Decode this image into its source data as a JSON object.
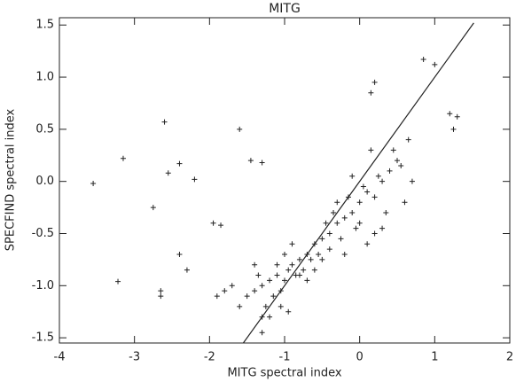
{
  "chart_data": {
    "type": "scatter",
    "title": "MITG",
    "x_label": "MITG spectral index",
    "y_label": "SPECFIND spectral index",
    "color": "#222222",
    "xlim": [
      -4,
      2
    ],
    "ylim": [
      -1.55,
      1.57
    ],
    "xticks": [
      -4,
      -3,
      -2,
      -1,
      0,
      1,
      2
    ],
    "yticks": [
      -1.5,
      {
        "value": -1.0,
        "label": "-1.0"
      },
      -0.5,
      {
        "value": 0.0,
        "label": "0.0"
      },
      0.5,
      {
        "value": 1.0,
        "label": "1.0"
      },
      1.5
    ],
    "x": [
      -1.2,
      -1.1,
      -1.0,
      -0.9,
      -0.8,
      -1.3,
      -1.4,
      -1.5,
      -0.7,
      -0.6,
      -0.5,
      -0.4,
      -0.3,
      -0.2,
      -0.1,
      0.0,
      0.1,
      0.2,
      0.3,
      0.4,
      0.5,
      -1.15,
      -1.05,
      -0.95,
      -0.85,
      -0.75,
      -1.25,
      -1.35,
      -0.65,
      -0.55,
      -0.45,
      -0.35,
      -0.25,
      -0.15,
      -0.05,
      0.05,
      0.15,
      0.25,
      0.35,
      0.45,
      0.55,
      0.65,
      -1.6,
      -1.7,
      -1.8,
      -1.9,
      -1.0,
      -0.9,
      -0.8,
      -1.1,
      -0.7,
      -0.6,
      -0.5,
      -0.4,
      -0.3,
      -0.2,
      -0.1,
      0.0,
      0.1,
      0.2,
      0.3,
      0.6,
      0.7,
      -1.2,
      -1.3,
      -1.4,
      -0.95,
      -1.05,
      -3.55,
      -3.15,
      -3.22,
      -2.6,
      -2.55,
      -2.4,
      -2.2,
      -2.75,
      -2.65,
      -2.65,
      -2.4,
      -2.3,
      -1.95,
      -1.85,
      -1.6,
      -1.45,
      -1.3,
      0.85,
      1.0,
      1.3,
      1.25,
      1.2,
      0.2,
      0.15,
      -1.3
    ],
    "y": [
      -0.95,
      -0.9,
      -0.95,
      -0.8,
      -0.75,
      -1.0,
      -1.05,
      -1.1,
      -0.7,
      -0.6,
      -0.55,
      -0.5,
      -0.4,
      -0.35,
      -0.3,
      -0.2,
      -0.1,
      -0.15,
      0.0,
      0.1,
      0.2,
      -1.1,
      -1.05,
      -0.85,
      -0.9,
      -0.85,
      -1.2,
      -0.9,
      -0.75,
      -0.7,
      -0.4,
      -0.3,
      -0.55,
      -0.15,
      -0.45,
      -0.05,
      0.3,
      0.05,
      -0.3,
      0.3,
      0.15,
      0.4,
      -1.2,
      -1.0,
      -1.05,
      -1.1,
      -0.7,
      -0.6,
      -0.9,
      -0.8,
      -0.95,
      -0.85,
      -0.75,
      -0.65,
      -0.2,
      -0.7,
      0.05,
      -0.4,
      -0.6,
      -0.5,
      -0.45,
      -0.2,
      0.0,
      -1.3,
      -1.3,
      -0.8,
      -1.25,
      -1.2,
      -0.02,
      0.22,
      -0.96,
      0.57,
      0.08,
      0.17,
      0.02,
      -0.25,
      -1.05,
      -1.1,
      -0.7,
      -0.85,
      -0.4,
      -0.42,
      0.5,
      0.2,
      0.18,
      1.17,
      1.12,
      0.62,
      0.5,
      0.65,
      0.95,
      0.85,
      -1.45
    ],
    "fit_line": {
      "x": [
        -1.55,
        1.52
      ],
      "y": [
        -1.55,
        1.52
      ]
    }
  }
}
